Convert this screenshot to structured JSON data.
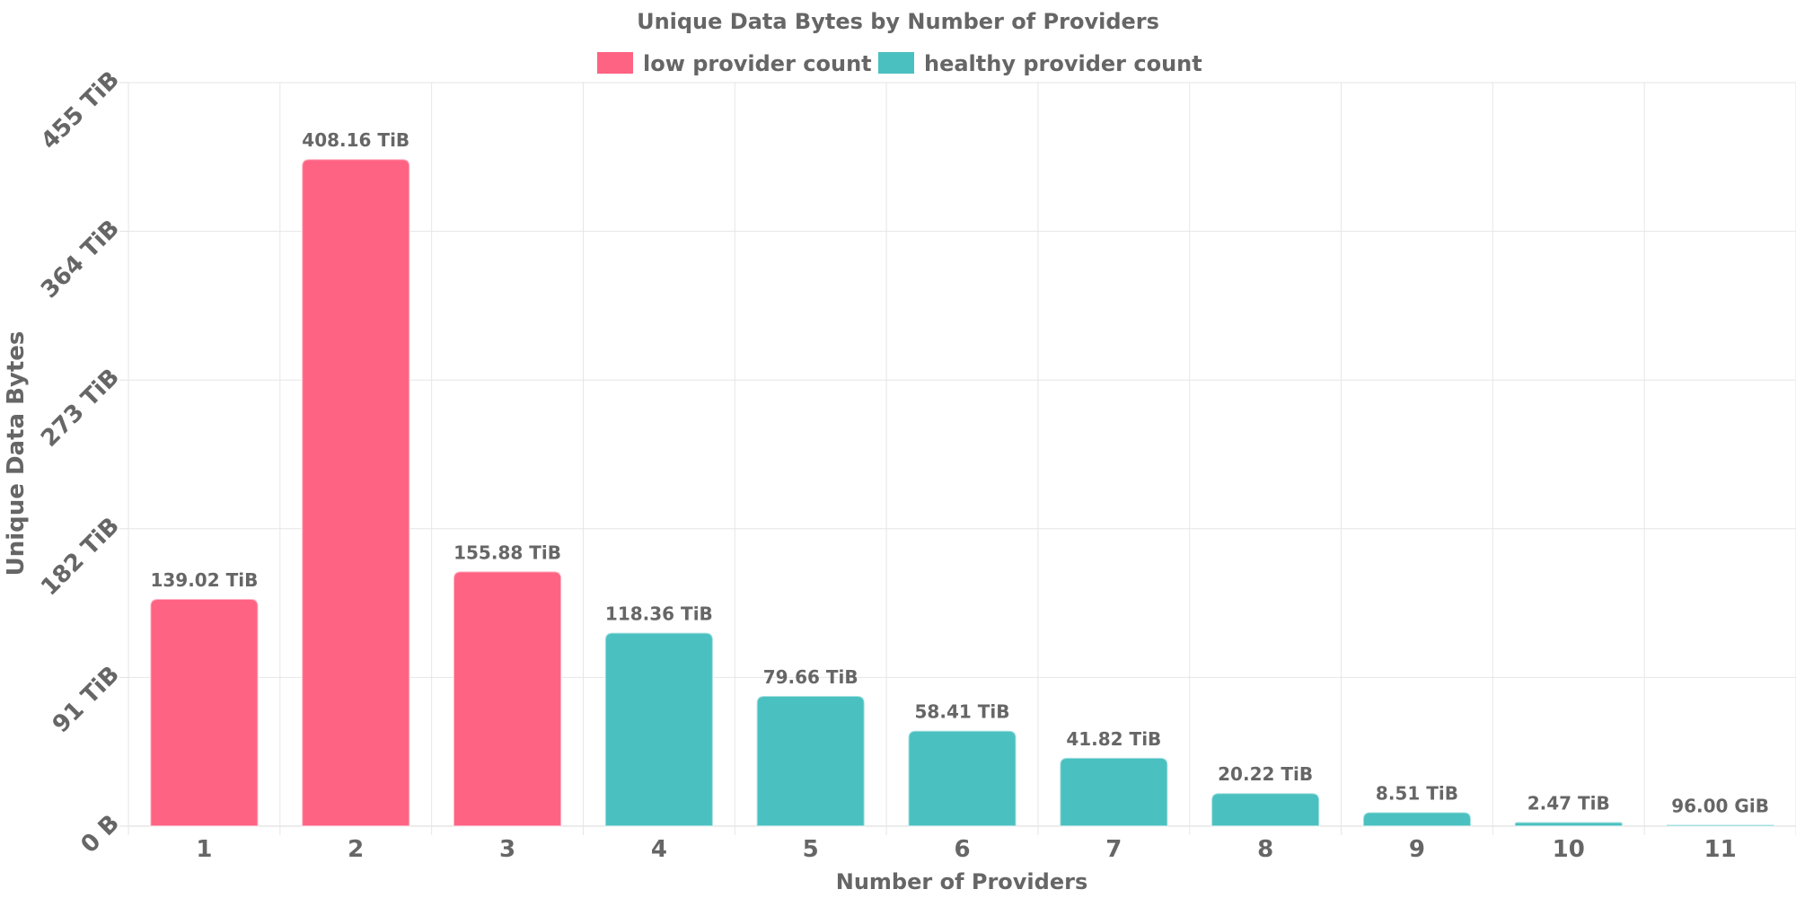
{
  "chart_data": {
    "type": "bar",
    "title": "Unique Data Bytes by Number of Providers",
    "xlabel": "Number of Providers",
    "ylabel": "Unique Data Bytes",
    "categories": [
      "1",
      "2",
      "3",
      "4",
      "5",
      "6",
      "7",
      "8",
      "9",
      "10",
      "11"
    ],
    "values_tib": [
      139.02,
      408.16,
      155.88,
      118.36,
      79.66,
      58.41,
      41.82,
      20.22,
      8.51,
      2.47,
      0.09375
    ],
    "value_labels": [
      "139.02 TiB",
      "408.16 TiB",
      "155.88 TiB",
      "118.36 TiB",
      "79.66 TiB",
      "58.41 TiB",
      "41.82 TiB",
      "20.22 TiB",
      "8.51 TiB",
      "2.47 TiB",
      "96.00 GiB"
    ],
    "series_of_bar": [
      "low",
      "low",
      "low",
      "healthy",
      "healthy",
      "healthy",
      "healthy",
      "healthy",
      "healthy",
      "healthy",
      "healthy"
    ],
    "series": [
      {
        "key": "low",
        "name": "low provider count",
        "color": "#ff6384"
      },
      {
        "key": "healthy",
        "name": "healthy provider count",
        "color": "#4bc0c0"
      }
    ],
    "ylim_tib": [
      0,
      455
    ],
    "yticks_tib": [
      0,
      91,
      182,
      273,
      364,
      455
    ],
    "ytick_labels": [
      "0 B",
      "91 TiB",
      "182 TiB",
      "273 TiB",
      "364 TiB",
      "455 TiB"
    ],
    "legend_position": "top-center",
    "grid": true
  }
}
